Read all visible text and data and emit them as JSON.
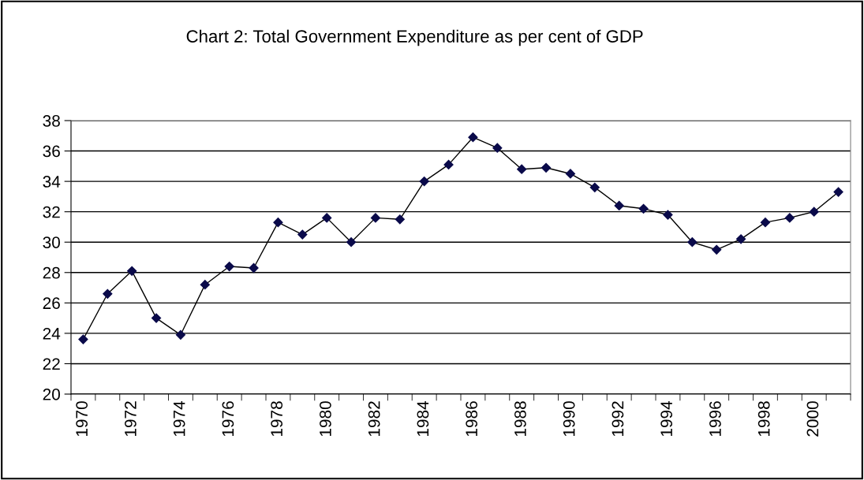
{
  "chart_data": {
    "type": "line",
    "title": "Chart 2: Total Government Expenditure as per cent of GDP",
    "categories": [
      "1970",
      null,
      "1972",
      null,
      "1974",
      null,
      "1976",
      null,
      "1978",
      null,
      "1980",
      null,
      "1982",
      null,
      "1984",
      null,
      "1986",
      null,
      "1988",
      null,
      "1990",
      null,
      "1992",
      null,
      "1994",
      null,
      "1996",
      null,
      "1998",
      null,
      "2000",
      null
    ],
    "series": [
      {
        "color": "#0a0a4a",
        "values": [
          23.6,
          26.6,
          28.1,
          25.0,
          23.9,
          27.2,
          28.4,
          28.3,
          31.3,
          30.5,
          31.6,
          30.0,
          31.6,
          31.5,
          34.0,
          35.1,
          36.9,
          36.2,
          34.8,
          34.9,
          34.5,
          33.6,
          32.4,
          32.2,
          31.8,
          30.0,
          29.5,
          30.2,
          31.3,
          31.6,
          32.0,
          33.3
        ]
      }
    ],
    "ylim": [
      20,
      38
    ],
    "yticks": [
      20,
      22,
      24,
      26,
      28,
      30,
      32,
      34,
      36,
      38
    ],
    "grid": "y",
    "marker": "diamond",
    "line_style": "solid"
  }
}
